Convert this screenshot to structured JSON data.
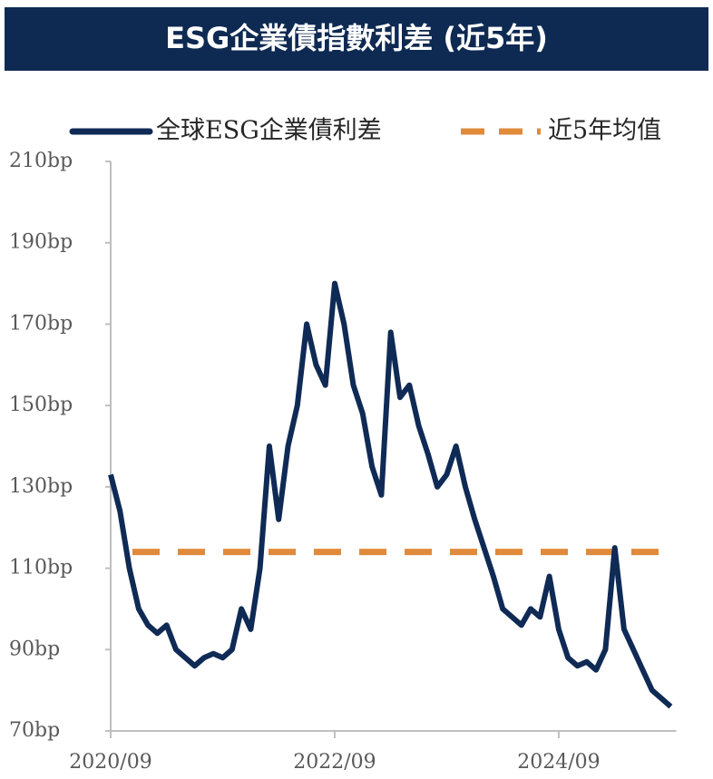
{
  "chart_data": {
    "type": "line",
    "title": "ESG企業債指數利差 (近5年)",
    "x": [
      "2020/09",
      "2020/10",
      "2020/11",
      "2020/12",
      "2021/01",
      "2021/02",
      "2021/03",
      "2021/04",
      "2021/05",
      "2021/06",
      "2021/07",
      "2021/08",
      "2021/09",
      "2021/10",
      "2021/11",
      "2021/12",
      "2022/01",
      "2022/02",
      "2022/03",
      "2022/04",
      "2022/05",
      "2022/06",
      "2022/07",
      "2022/08",
      "2022/09",
      "2022/10",
      "2022/11",
      "2022/12",
      "2023/01",
      "2023/02",
      "2023/03",
      "2023/04",
      "2023/05",
      "2023/06",
      "2023/07",
      "2023/08",
      "2023/09",
      "2023/10",
      "2023/11",
      "2023/12",
      "2024/01",
      "2024/02",
      "2024/03",
      "2024/04",
      "2024/05",
      "2024/06",
      "2024/07",
      "2024/08",
      "2024/09",
      "2024/10",
      "2024/11",
      "2024/12",
      "2025/01",
      "2025/02",
      "2025/03",
      "2025/04",
      "2025/05",
      "2025/06",
      "2025/07",
      "2025/08",
      "2025/09"
    ],
    "series": [
      {
        "name": "全球ESG企業債利差",
        "color": "#0f2a55",
        "values": [
          133,
          124,
          110,
          100,
          96,
          94,
          96,
          90,
          88,
          86,
          88,
          89,
          88,
          90,
          100,
          95,
          110,
          140,
          122,
          140,
          150,
          170,
          160,
          155,
          180,
          170,
          155,
          148,
          135,
          128,
          168,
          152,
          155,
          145,
          138,
          130,
          133,
          140,
          130,
          122,
          115,
          108,
          100,
          98,
          96,
          100,
          98,
          108,
          95,
          88,
          86,
          87,
          85,
          90,
          115,
          95,
          90,
          85,
          80,
          78,
          76
        ]
      }
    ],
    "reference_line": {
      "name": "近5年均值",
      "value": 114,
      "color": "#e08a3c"
    },
    "ylim": [
      70,
      210
    ],
    "yticks": [
      {
        "value": 70,
        "label": "70bp"
      },
      {
        "value": 90,
        "label": "90bp"
      },
      {
        "value": 110,
        "label": "110bp"
      },
      {
        "value": 130,
        "label": "130bp"
      },
      {
        "value": 150,
        "label": "150bp"
      },
      {
        "value": 170,
        "label": "170bp"
      },
      {
        "value": 190,
        "label": "190bp"
      },
      {
        "value": 210,
        "label": "210bp"
      }
    ],
    "xticks": [
      "2020/09",
      "2022/09",
      "2024/09"
    ]
  }
}
